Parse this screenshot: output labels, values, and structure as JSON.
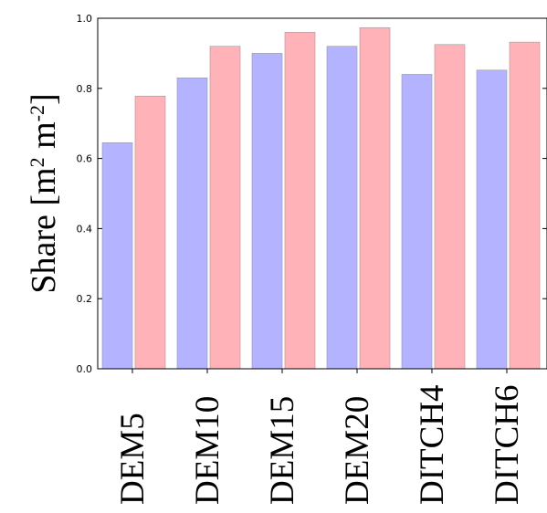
{
  "chart_data": {
    "type": "bar",
    "categories": [
      "DEM5",
      "DEM10",
      "DEM15",
      "DEM20",
      "DITCH4",
      "DITCH6"
    ],
    "series": [
      {
        "values": [
          0.645,
          0.83,
          0.9,
          0.92,
          0.84,
          0.852
        ],
        "color": "#b3b3ff"
      },
      {
        "values": [
          0.778,
          0.92,
          0.96,
          0.973,
          0.925,
          0.932
        ],
        "color": "#ffb3b8"
      }
    ],
    "ylabel": "Share [m2 m-2]",
    "ylabel_parts": {
      "base": "Share [m",
      "sup1": "2",
      "mid": " m",
      "sup2": "-2",
      "end": "]"
    },
    "ylim": [
      0,
      1.0
    ],
    "yticks": [
      "0.0",
      "0.2",
      "0.4",
      "0.6",
      "0.8",
      "1.0"
    ],
    "grid": false,
    "legend": "none"
  }
}
